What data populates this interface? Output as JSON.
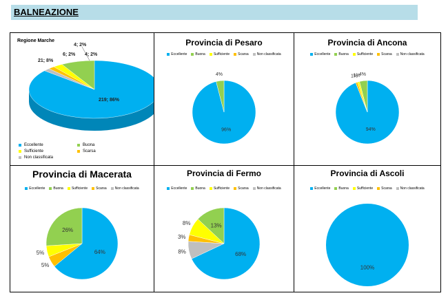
{
  "page": {
    "title": "BALNEAZIONE"
  },
  "colors": {
    "Eccellente": "#00b0f0",
    "Buona": "#92d050",
    "Sufficiente": "#ffff00",
    "Scarsa": "#ffc000",
    "Non classificata": "#bfbfbf"
  },
  "legend_labels": [
    "Eccellente",
    "Buona",
    "Sufficiente",
    "Scarsa",
    "Non classificata"
  ],
  "chart_data": [
    {
      "type": "pie",
      "title": "Regione Marche",
      "categories": [
        "Eccellente",
        "Buona",
        "Sufficiente",
        "Scarsa",
        "Non classificata"
      ],
      "values": [
        219,
        21,
        6,
        4,
        4
      ],
      "percent": [
        86,
        8,
        2,
        2,
        2
      ],
      "data_labels": [
        "219; 86%",
        "21; 8%",
        "6; 2%",
        "4; 2%",
        "4; 2%"
      ],
      "style": "3d",
      "legend": "bottom"
    },
    {
      "type": "pie",
      "title": "Provincia di Pesaro",
      "categories": [
        "Eccellente",
        "Buona",
        "Sufficiente",
        "Scarsa",
        "Non classificata"
      ],
      "values": [
        96,
        4,
        0,
        0,
        0
      ],
      "data_labels": [
        "96%",
        "4%",
        "",
        "",
        ""
      ],
      "legend": "top"
    },
    {
      "type": "pie",
      "title": "Provincia di Ancona",
      "categories": [
        "Eccellente",
        "Buona",
        "Sufficiente",
        "Scarsa",
        "Non classificata"
      ],
      "values": [
        94,
        4,
        1,
        1,
        0
      ],
      "data_labels": [
        "94%",
        "4%",
        "1%",
        "1%",
        ""
      ],
      "legend": "top"
    },
    {
      "type": "pie",
      "title": "Provincia di Macerata",
      "categories": [
        "Eccellente",
        "Buona",
        "Sufficiente",
        "Scarsa",
        "Non classificata"
      ],
      "values": [
        64,
        26,
        5,
        5,
        0
      ],
      "data_labels": [
        "64%",
        "26%",
        "5%",
        "5%",
        ""
      ],
      "legend": "top"
    },
    {
      "type": "pie",
      "title": "Provincia di Fermo",
      "categories": [
        "Eccellente",
        "Buona",
        "Sufficiente",
        "Scarsa",
        "Non classificata"
      ],
      "values": [
        68,
        13,
        8,
        3,
        8
      ],
      "data_labels": [
        "68%",
        "13%",
        "8%",
        "3%",
        "8%"
      ],
      "legend": "top"
    },
    {
      "type": "pie",
      "title": "Provincia di Ascoli",
      "categories": [
        "Eccellente",
        "Buona",
        "Sufficiente",
        "Scarsa",
        "Non classificata"
      ],
      "values": [
        100,
        0,
        0,
        0,
        0
      ],
      "data_labels": [
        "100%",
        "",
        "",
        "",
        ""
      ],
      "legend": "top"
    }
  ]
}
